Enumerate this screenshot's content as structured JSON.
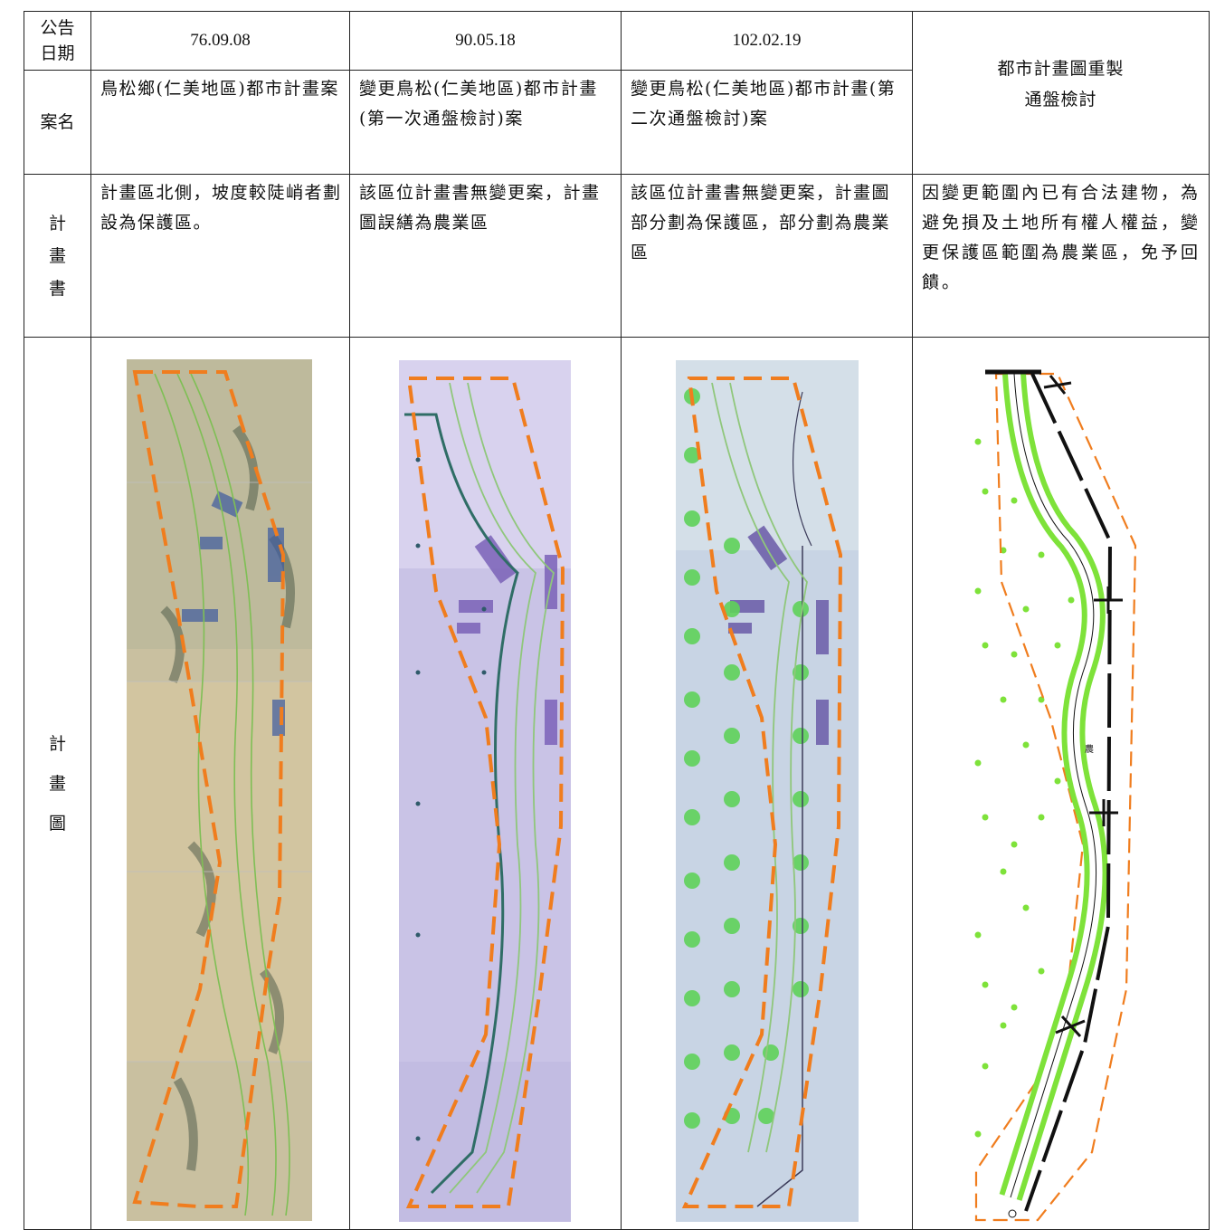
{
  "rows": {
    "date_label": "公告\n日期",
    "name_label": "案名",
    "plan_text_label": "計\n畫\n書",
    "plan_map_label": "計\n畫\n圖"
  },
  "columns": [
    {
      "date": "76.09.08",
      "name": "鳥松鄉(仁美地區)都市計畫案",
      "plan_text": "計畫區北側，坡度較陡峭者劃設為保護區。"
    },
    {
      "date": "90.05.18",
      "name": "變更鳥松(仁美地區)都市計畫(第一次通盤檢討)案",
      "plan_text": "該區位計畫書無變更案，計畫圖誤繕為農業區"
    },
    {
      "date": "102.02.19",
      "name": "變更鳥松(仁美地區)都市計畫(第二次通盤檢討)案",
      "plan_text": "該區位計畫書無變更案，計畫圖部分劃為保護區，部分劃為農業區"
    },
    {
      "date": "",
      "name": "都市計畫圖重製\n通盤檢討",
      "plan_text": "因變更範圍內已有合法建物，為避免損及土地所有權人權益，變更保護區範圍為農業區，免予回饋。"
    }
  ],
  "map4_label": "農",
  "colors": {
    "boundary": "#f07d1e",
    "green": "#7ee23a",
    "road": "#111111"
  }
}
